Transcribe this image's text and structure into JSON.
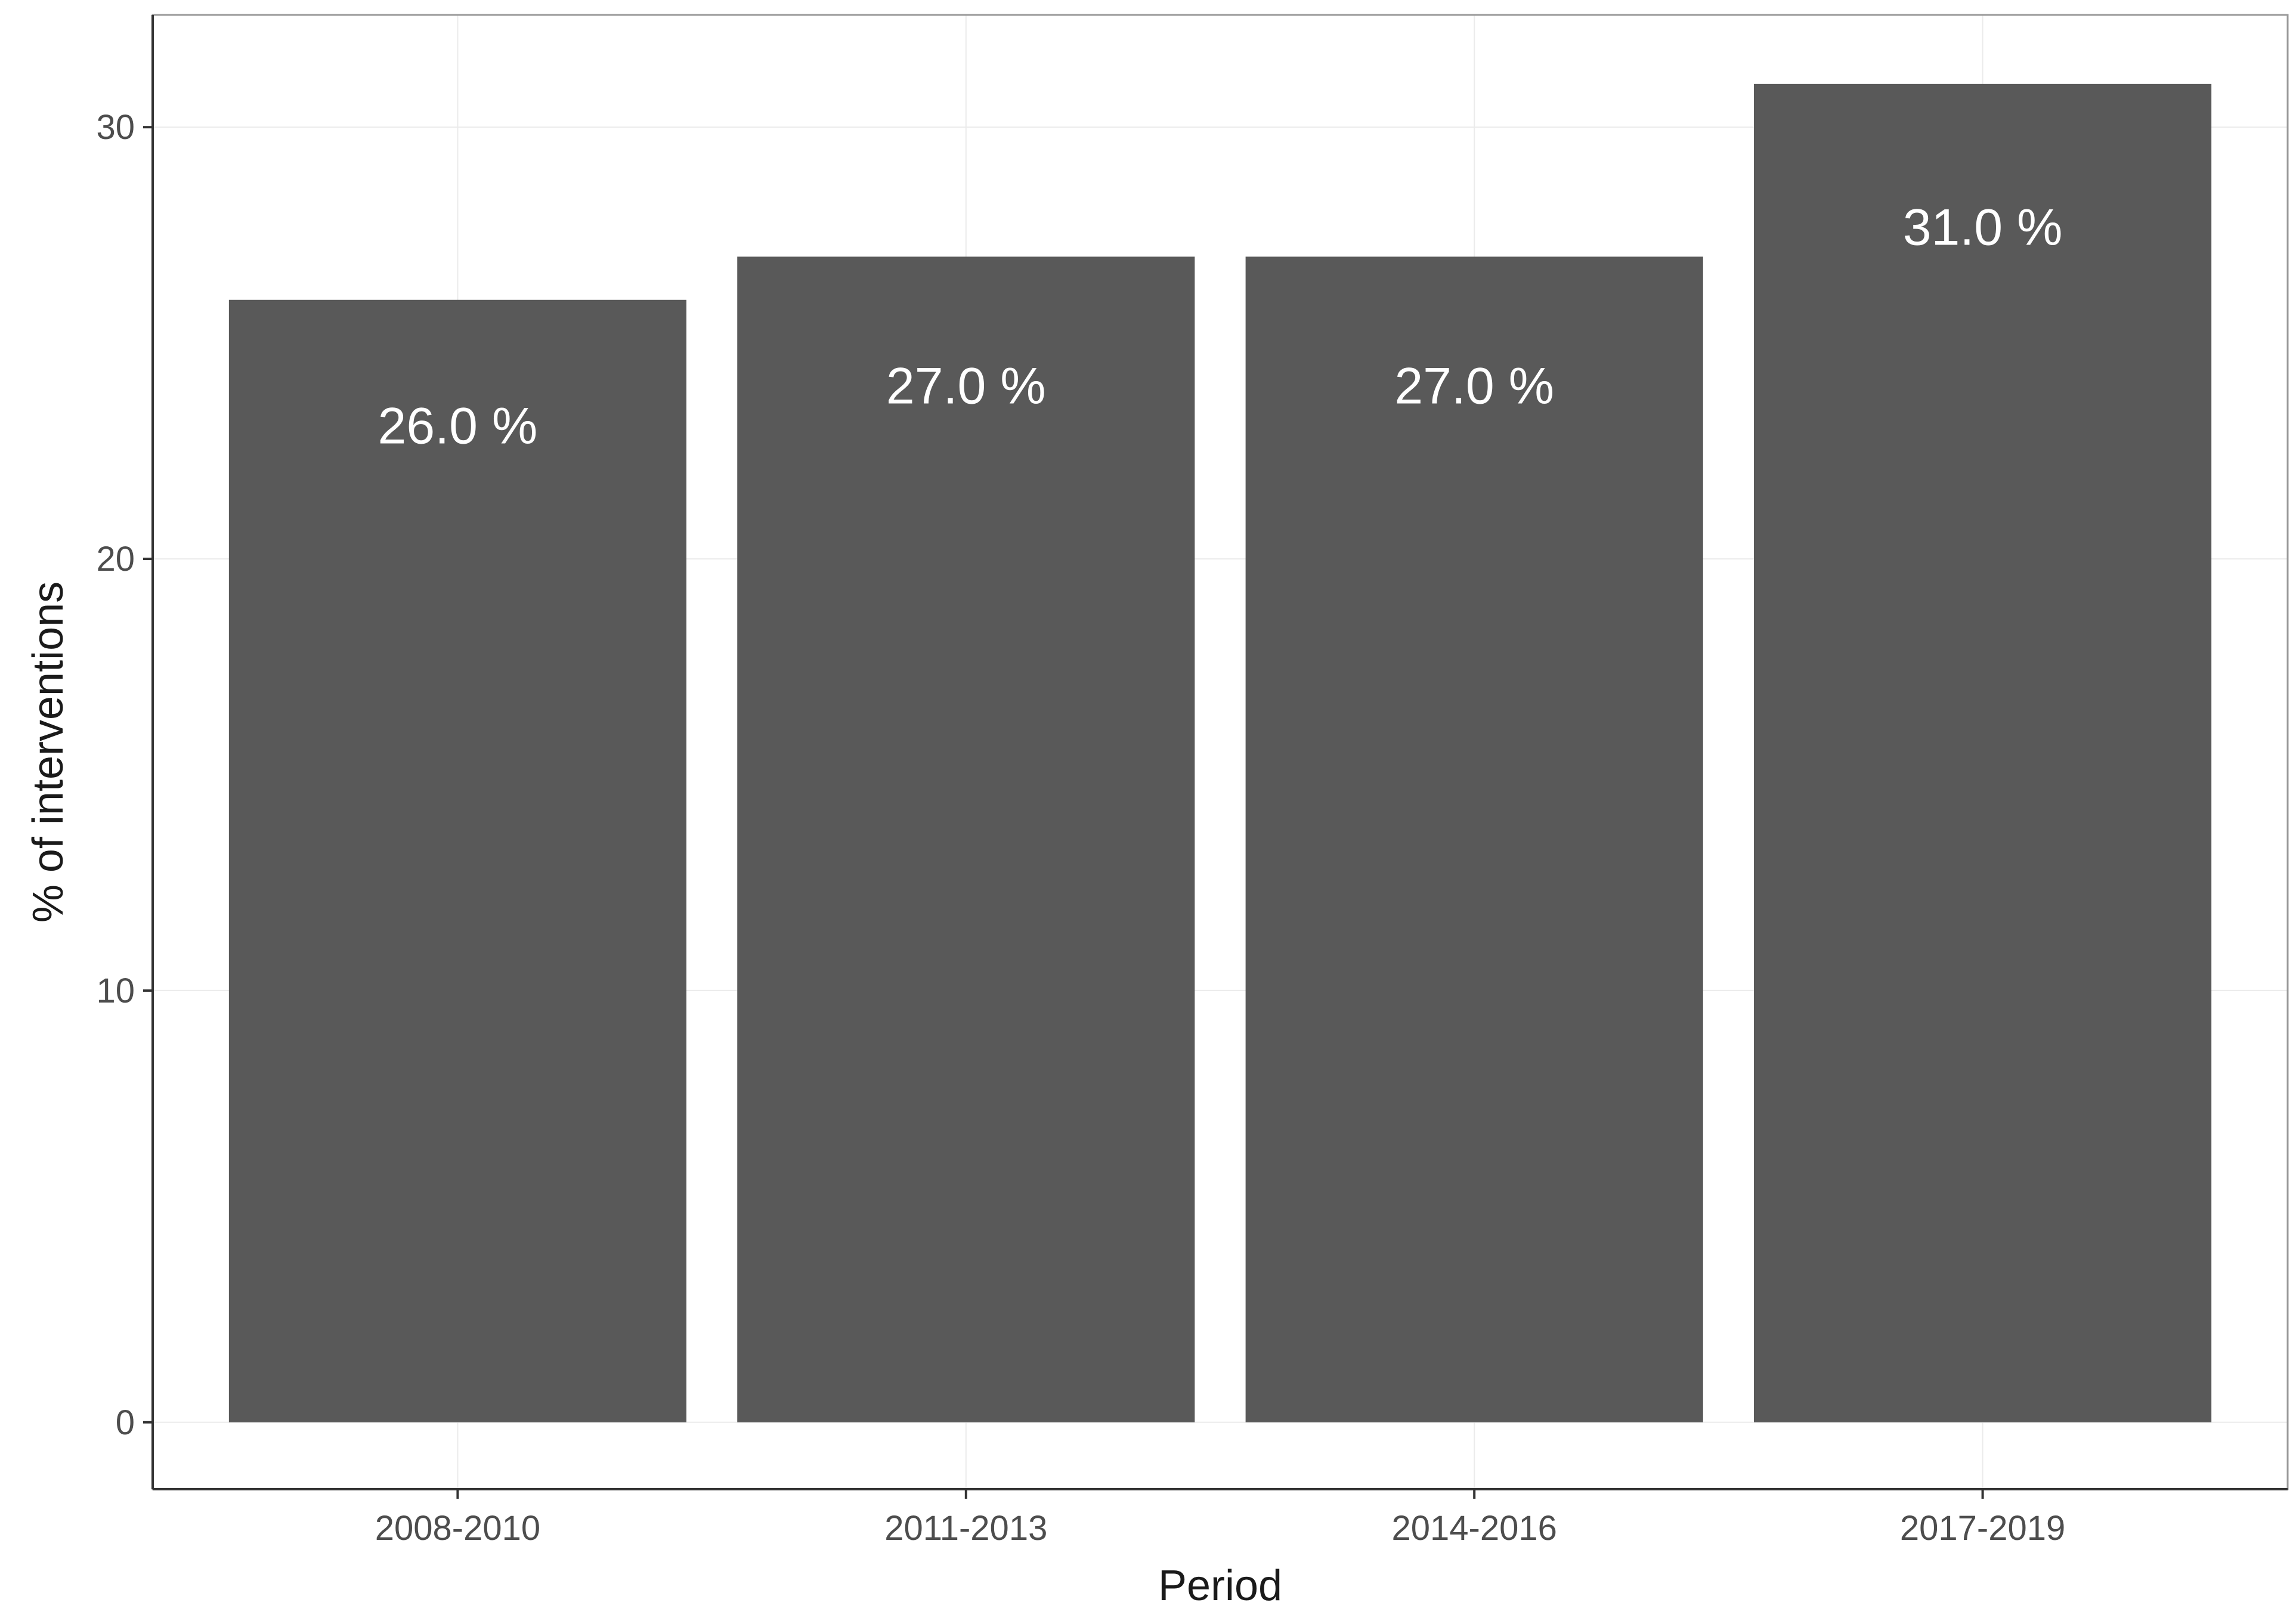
{
  "colors": {
    "bar": "#595959",
    "bar_label": "#ffffff",
    "axis": "#333333",
    "panel_border": "#9a9a9a",
    "grid": "#ebebeb"
  },
  "chart_data": {
    "type": "bar",
    "title": "",
    "xlabel": "Period",
    "ylabel": "% of interventions",
    "categories": [
      "2008-2010",
      "2011-2013",
      "2014-2016",
      "2017-2019"
    ],
    "values": [
      26.0,
      27.0,
      27.0,
      31.0
    ],
    "value_labels": [
      "26.0 %",
      "27.0 %",
      "27.0 %",
      "31.0 %"
    ],
    "ylim": [
      -1.55,
      32.6
    ],
    "yticks": [
      0,
      10,
      20,
      30
    ],
    "ytick_labels": [
      "0",
      "10",
      "20",
      "30"
    ],
    "grid": false,
    "legend": "none"
  }
}
